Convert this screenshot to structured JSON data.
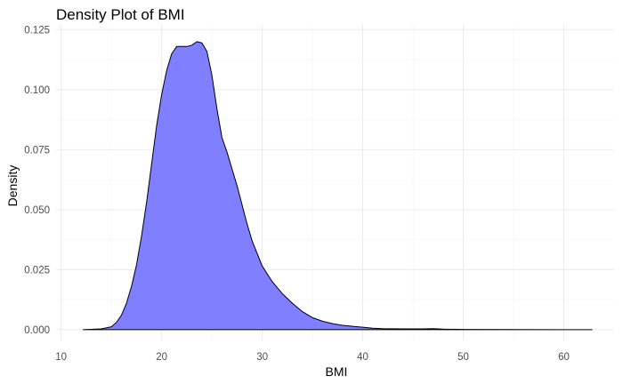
{
  "chart_data": {
    "type": "area",
    "title": "Density Plot of BMI",
    "xlabel": "BMI",
    "ylabel": "Density",
    "xlim": [
      9.5,
      65
    ],
    "ylim": [
      -0.0045,
      0.127
    ],
    "x_ticks": [
      10,
      20,
      30,
      40,
      50,
      60
    ],
    "y_ticks": [
      0.0,
      0.025,
      0.05,
      0.075,
      0.1,
      0.125
    ],
    "y_tick_labels": [
      "0.000",
      "0.025",
      "0.050",
      "0.075",
      "0.100",
      "0.125"
    ],
    "grid": true,
    "fill_color": "#7f7fff",
    "line_color": "#000000",
    "series": [
      {
        "x": [
          12.2,
          14,
          15,
          15.5,
          16,
          16.5,
          17,
          17.5,
          18,
          18.5,
          19,
          19.5,
          20,
          20.5,
          21,
          21.5,
          22,
          22.5,
          23,
          23.5,
          24,
          24.5,
          25,
          25.5,
          26,
          26.5,
          27,
          27.5,
          28,
          28.5,
          29,
          30,
          31,
          32,
          33,
          34,
          35,
          36,
          37,
          38,
          39,
          40,
          41,
          42,
          44,
          46,
          47,
          48,
          50,
          55,
          60,
          62.8
        ],
        "y": [
          0.0,
          0.0003,
          0.0012,
          0.003,
          0.006,
          0.011,
          0.018,
          0.027,
          0.039,
          0.053,
          0.069,
          0.085,
          0.098,
          0.108,
          0.115,
          0.118,
          0.118,
          0.118,
          0.1185,
          0.12,
          0.1195,
          0.116,
          0.106,
          0.092,
          0.08,
          0.074,
          0.067,
          0.06,
          0.052,
          0.044,
          0.037,
          0.0265,
          0.02,
          0.015,
          0.011,
          0.0075,
          0.005,
          0.0035,
          0.0025,
          0.0018,
          0.0014,
          0.001,
          0.0006,
          0.0004,
          0.0003,
          0.0003,
          0.0004,
          0.0002,
          0.0001,
          5e-05,
          0.0,
          0.0
        ]
      }
    ]
  }
}
